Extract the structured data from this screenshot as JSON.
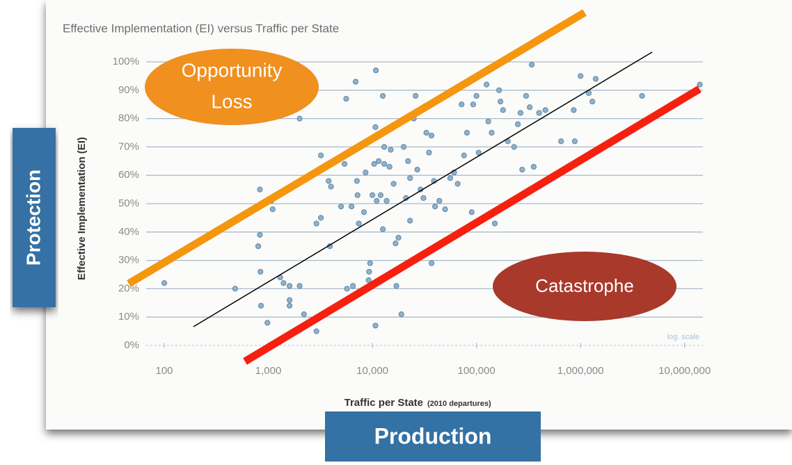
{
  "chart_data": {
    "type": "scatter",
    "title": "Effective Implementation (EI) versus Traffic per State",
    "y_label": "Effective Implementation (EI)",
    "x_label": "Traffic per State",
    "x_label_note": "(2010 departures)",
    "scale_note": "log. scale",
    "log_x": true,
    "grid": true,
    "color": "#8fb2cc",
    "xlim": [
      67,
      15000000
    ],
    "ylim": [
      0,
      100
    ],
    "xticks": [
      100,
      {
        "value": 1000,
        "label": "1,000"
      },
      {
        "value": 10000,
        "label": "10,000"
      },
      {
        "value": 100000,
        "label": "100,000"
      },
      {
        "value": 1000000,
        "label": "1,000,000"
      },
      {
        "value": 10000000,
        "label": "10,000,000"
      }
    ],
    "yticks": [
      {
        "value": 0,
        "label": "0%"
      },
      {
        "value": 10,
        "label": "10%"
      },
      {
        "value": 20,
        "label": "20%"
      },
      {
        "value": 30,
        "label": "30%"
      },
      {
        "value": 40,
        "label": "40%"
      },
      {
        "value": 50,
        "label": "50%"
      },
      {
        "value": 60,
        "label": "60%"
      },
      {
        "value": 70,
        "label": "70%"
      },
      {
        "value": 80,
        "label": "80%"
      },
      {
        "value": 90,
        "label": "90%"
      },
      {
        "value": 100,
        "label": "100%"
      }
    ],
    "x": [
      100,
      480,
      830,
      830,
      800,
      840,
      850,
      980,
      1100,
      1070,
      1300,
      1400,
      1600,
      1600,
      1600,
      2000,
      2200,
      2000,
      2900,
      3200,
      3200,
      3800,
      4000,
      3900,
      2900,
      5000,
      5400,
      5600,
      5700,
      6500,
      6300,
      7100,
      7200,
      7400,
      6900,
      8300,
      8600,
      9500,
      9300,
      9200,
      10000,
      10400,
      10700,
      10800,
      11000,
      10700,
      11500,
      12000,
      12600,
      13000,
      13000,
      12600,
      13700,
      14600,
      15000,
      16000,
      16700,
      17000,
      17800,
      19000,
      20000,
      21000,
      22000,
      23000,
      23000,
      26000,
      25000,
      27000,
      29000,
      31000,
      33000,
      37000,
      35000,
      37000,
      39000,
      40000,
      44000,
      50000,
      56000,
      61000,
      66000,
      72000,
      76000,
      81000,
      90000,
      93000,
      100000,
      105000,
      125000,
      130000,
      140000,
      150000,
      165000,
      170000,
      180000,
      200000,
      230000,
      250000,
      265000,
      275000,
      300000,
      325000,
      355000,
      340000,
      400000,
      460000,
      650000,
      860000,
      880000,
      1000000,
      1200000,
      1300000,
      1400000,
      3900000,
      14000000
    ],
    "values": [
      22,
      20,
      55,
      39,
      35,
      26,
      14,
      8,
      48,
      51,
      24,
      22,
      21,
      14,
      16,
      21,
      11,
      80,
      43,
      45,
      67,
      58,
      56,
      35,
      5,
      49,
      64,
      87,
      20,
      21,
      49,
      58,
      53,
      43,
      93,
      47,
      61,
      29,
      26,
      23,
      53,
      64,
      77,
      97,
      51,
      7,
      65,
      53,
      41,
      70,
      64,
      88,
      51,
      63,
      69,
      57,
      36,
      21,
      38,
      11,
      70,
      52,
      65,
      59,
      44,
      88,
      80,
      62,
      55,
      52,
      75,
      74,
      68,
      29,
      58,
      49,
      51,
      48,
      59,
      61,
      57,
      85,
      67,
      75,
      47,
      85,
      88,
      68,
      92,
      79,
      75,
      43,
      90,
      86,
      83,
      72,
      70,
      78,
      82,
      62,
      88,
      84,
      63,
      99,
      82,
      83,
      72,
      83,
      72,
      95,
      89,
      86,
      94,
      88,
      92
    ]
  },
  "annotations": {
    "opportunity": [
      "Opportunity",
      "Loss"
    ],
    "catastrophe": "Catastrophe",
    "protection": "Protection",
    "production": "Production"
  }
}
